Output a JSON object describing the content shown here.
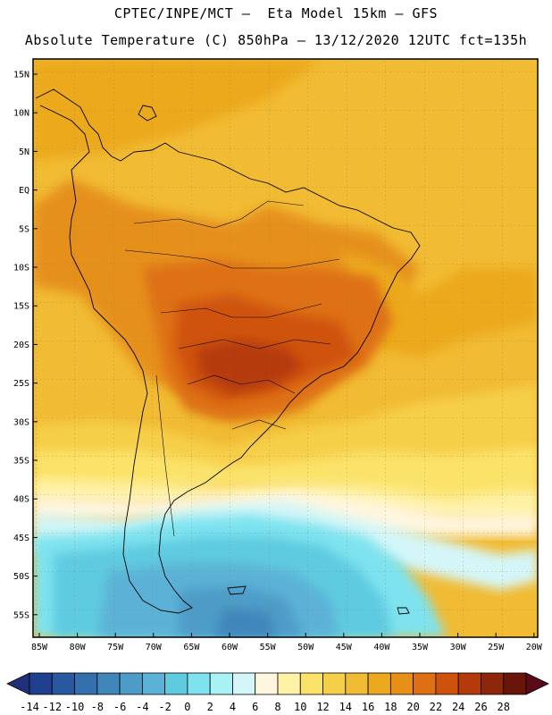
{
  "header": {
    "line1": "CPTEC/INPE/MCT –  Eta Model 15km – GFS",
    "line2": "Absolute Temperature (C) 850hPa – 13/12/2020 12UTC fct=135h"
  },
  "map": {
    "lat_labels": [
      "15N",
      "10N",
      "5N",
      "EQ",
      "5S",
      "10S",
      "15S",
      "20S",
      "25S",
      "30S",
      "35S",
      "40S",
      "45S",
      "50S",
      "55S"
    ],
    "lon_labels": [
      "85W",
      "80W",
      "75W",
      "70W",
      "65W",
      "60W",
      "55W",
      "50W",
      "45W",
      "40W",
      "35W",
      "30W",
      "25W",
      "20W"
    ]
  },
  "colorbar": {
    "labels": [
      "-14",
      "-12",
      "-10",
      "-8",
      "-6",
      "-4",
      "-2",
      "0",
      "2",
      "4",
      "6",
      "8",
      "10",
      "12",
      "14",
      "16",
      "18",
      "20",
      "22",
      "24",
      "26",
      "28"
    ],
    "colors": [
      "#1f3f8f",
      "#28589f",
      "#3470ad",
      "#3f86bb",
      "#4d9cc8",
      "#5cb2d6",
      "#5ecbe0",
      "#7ee3ef",
      "#a8f2f6",
      "#d4f6f8",
      "#fff6df",
      "#fff2a6",
      "#fbe36a",
      "#f6cf49",
      "#f1bb33",
      "#eca91f",
      "#e6901a",
      "#de6f12",
      "#cf520c",
      "#b53a0b",
      "#8e260a",
      "#6a1509"
    ],
    "low_arrow_color": "#1f2f7a",
    "high_arrow_color": "#5a0a18"
  }
}
